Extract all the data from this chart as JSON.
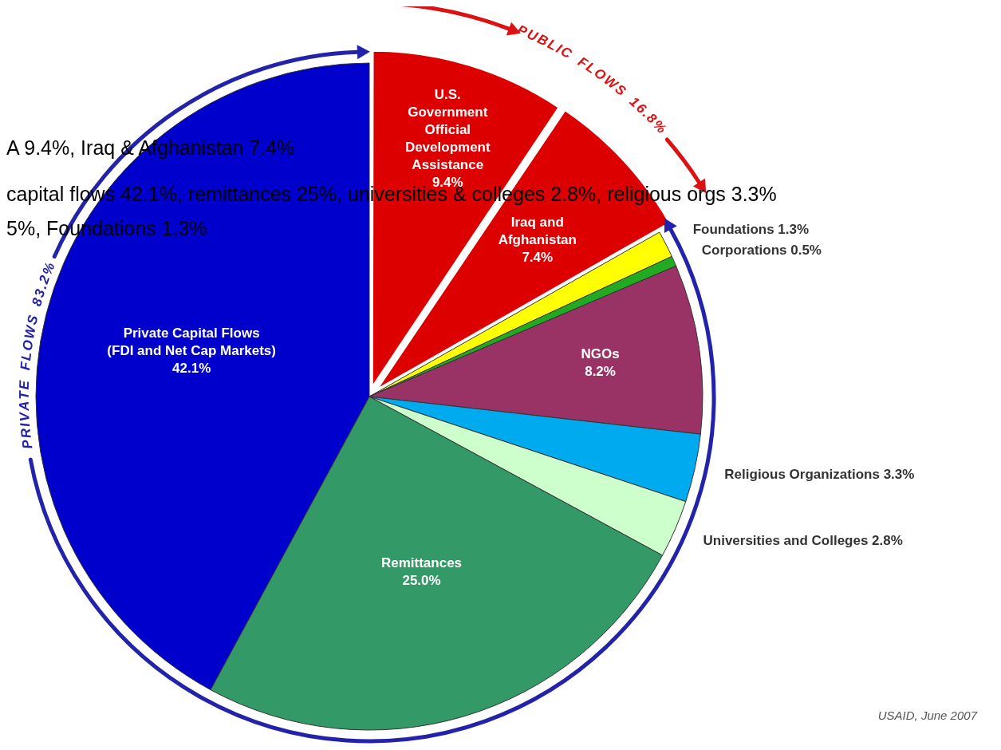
{
  "chart_data": {
    "type": "pie",
    "categories": [
      "U.S. Government Official Development Assistance",
      "Iraq and Afghanistan",
      "Foundations",
      "Corporations",
      "NGOs",
      "Religious Organizations",
      "Universities and Colleges",
      "Remittances",
      "Private Capital Flows (FDI and Net Cap Markets)"
    ],
    "values": [
      9.4,
      7.4,
      1.3,
      0.5,
      8.2,
      3.3,
      2.8,
      25.0,
      42.1
    ],
    "colors": [
      "#dd0000",
      "#dd0000",
      "#ffff00",
      "#22aa22",
      "#993366",
      "#00aaee",
      "#ccffcc",
      "#339966",
      "#0000cc"
    ],
    "value_labels": [
      "9.4%",
      "7.4%",
      "1.3%",
      "0.5%",
      "8.2%",
      "3.3%",
      "2.8%",
      "25.0%",
      "42.1%"
    ],
    "annotations": [
      "PUBLIC FLOWS 16.8%",
      "PRIVATE FLOWS 83.2%",
      "A 9.4%, Iraq & Afghanistan 7.4%",
      "capital flows 42.1%, remittances 25%, universities & colleges 2.8%, religious orgs 3.3%",
      "5%, Foundations 1.3%",
      "USAID, June 2007"
    ]
  }
}
